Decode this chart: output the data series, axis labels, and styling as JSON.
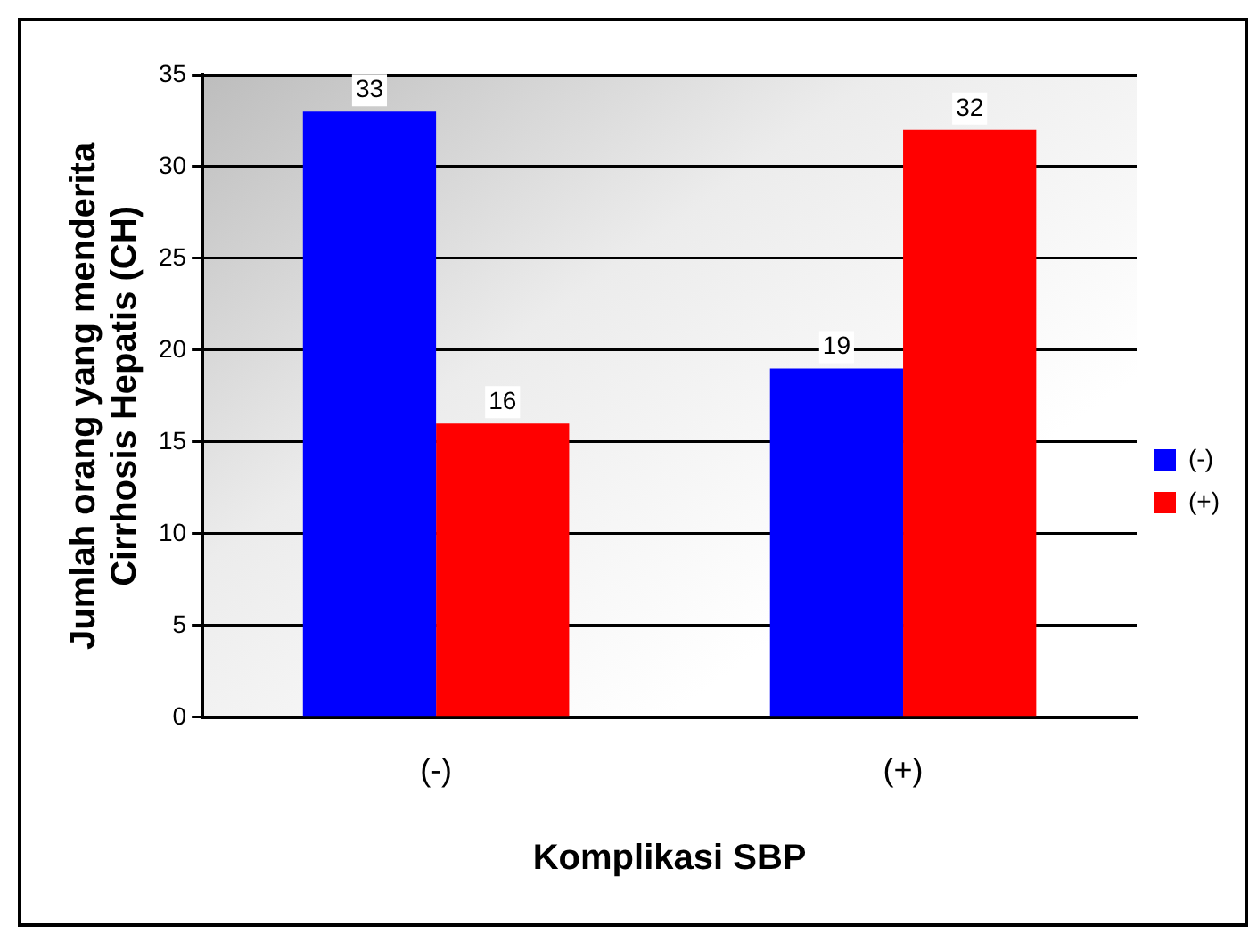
{
  "chart_data": {
    "type": "bar",
    "xlabel": "Komplikasi SBP",
    "ylabel": "Jumlah orang yang menderita Cirrhosis Hepatis (CH)",
    "categories": [
      "(-)",
      "(+)"
    ],
    "series": [
      {
        "name": "(-)",
        "color": "#0000ff",
        "values": [
          33,
          19
        ]
      },
      {
        "name": "(+)",
        "color": "#ff0000",
        "values": [
          16,
          32
        ]
      }
    ],
    "ylim": [
      0,
      35
    ],
    "yticks": [
      0,
      5,
      10,
      15,
      20,
      25,
      30,
      35
    ],
    "grid": "y",
    "legend": "right",
    "data_labels": true
  }
}
